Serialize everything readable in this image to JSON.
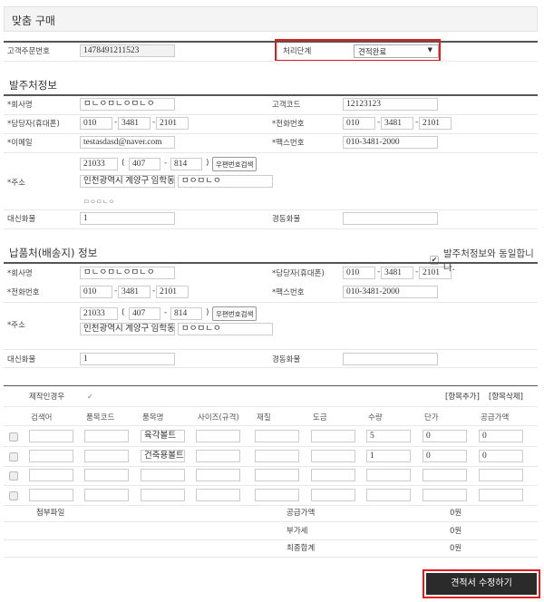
{
  "title": "맞춤 구매",
  "order": {
    "order_no_label": "고객주문번호",
    "order_no": "1478491211523",
    "stage_label": "처리단계",
    "stage_value": "견적완료"
  },
  "orderer": {
    "section_title": "발주처정보",
    "company_label": "*회사명",
    "company": "ㅁㄴㅇㅁㄴㅇㅁㄴㅇ",
    "code_label": "고객코드",
    "code": "12123123",
    "mobile_label": "*담당자(휴대폰)",
    "mobile": [
      "010",
      "3481",
      "2101"
    ],
    "phone_label": "*전화번호",
    "phone": [
      "010",
      "3481",
      "2101"
    ],
    "email_label": "*이메일",
    "email": "testasdasd@naver.com",
    "fax_label": "*팩스번호",
    "fax": "010-3481-2000",
    "address_label": "*주소",
    "zip": "21033",
    "zip2": [
      "407",
      "814"
    ],
    "zip_search": "우편번호검색",
    "addr1": "인천광역시 계양구 임학동",
    "addr2": "ㅁㅇㅁㄴㅇ",
    "addr_note": "ㅁㅇㅁㄴㅇ",
    "daesin_label": "대신화물",
    "daesin": "1",
    "kyungdong_label": "경동화물",
    "kyungdong": ""
  },
  "delivery": {
    "section_title": "납품처(배송지) 정보",
    "same_label": "발주처정보와 동일합니다.",
    "same_checked": true,
    "company_label": "*회사명",
    "company": "ㅁㄴㅇㅁㄴㅇㅁㄴㅇ",
    "mobile_label": "*담당자(휴대폰)",
    "mobile": [
      "010",
      "3481",
      "2101"
    ],
    "phone_label": "*전화번호",
    "phone": [
      "010",
      "3481",
      "2101"
    ],
    "fax_label": "*팩스번호",
    "fax": "010-3481-2000",
    "address_label": "*주소",
    "zip": "21033",
    "zip2": [
      "407",
      "814"
    ],
    "zip_search": "우편번호검색",
    "addr1": "인천광역시 계양구 임학동",
    "addr2": "ㅁㅇㅁㄴㅇ",
    "daesin_label": "대신화물",
    "daesin": "1",
    "kyungdong_label": "경동화물",
    "kyungdong": ""
  },
  "items": {
    "custom_label": "제작인경우",
    "add_label": "[항목추가]",
    "delete_label": "[항목삭제]",
    "headers": [
      "검색어",
      "품목코드",
      "품목명",
      "사이즈(규격)",
      "재질",
      "도금",
      "수량",
      "단가",
      "공급가액"
    ],
    "rows": [
      [
        "",
        "",
        "육각볼트",
        "",
        "",
        "",
        "5",
        "0",
        "0"
      ],
      [
        "",
        "",
        "건축용볼트(",
        "",
        "",
        "",
        "1",
        "0",
        "0"
      ],
      [
        "",
        "",
        "",
        "",
        "",
        "",
        "",
        "",
        ""
      ],
      [
        "",
        "",
        "",
        "",
        "",
        "",
        "",
        "",
        ""
      ]
    ],
    "attach_label": "첨부파일",
    "totals": [
      {
        "label": "공급가액",
        "value": "0원"
      },
      {
        "label": "부가세",
        "value": "0원"
      },
      {
        "label": "최종합계",
        "value": "0원"
      }
    ]
  },
  "submit_label": "견적서 수정하기",
  "colors": {
    "highlight": "#e31b1b",
    "button": "#2b2b2b"
  }
}
